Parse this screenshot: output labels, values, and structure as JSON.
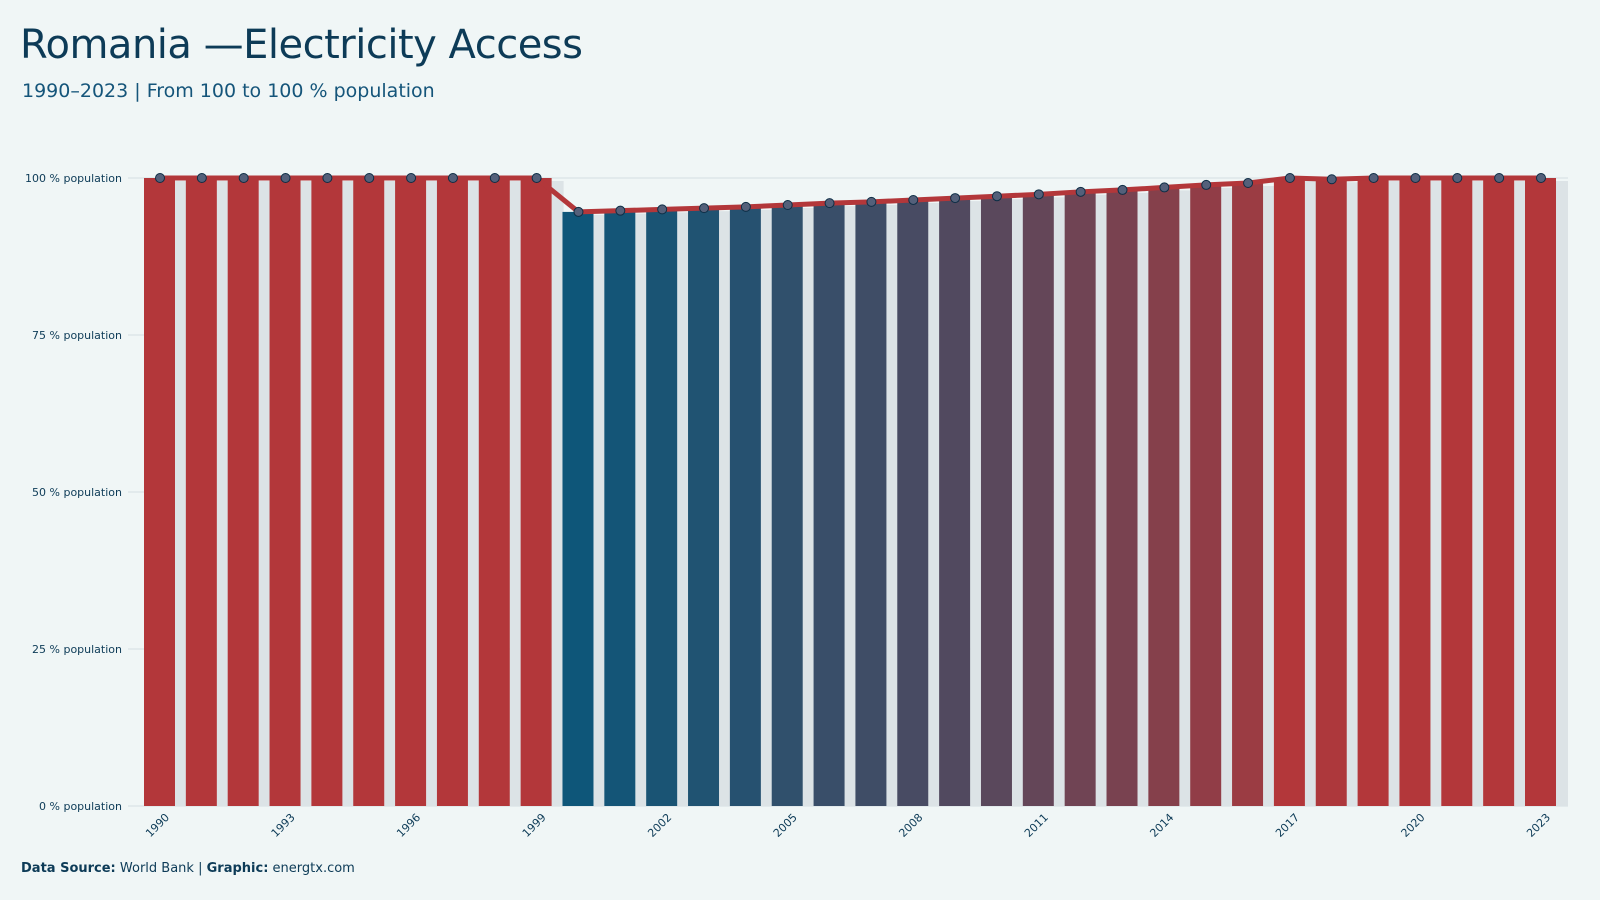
{
  "header": {
    "title": "Romania —Electricity Access",
    "subtitle": "1990–2023 | From 100 to 100 % population"
  },
  "footer": {
    "source_label": "Data Source:",
    "source_value": "World Bank",
    "separator": "|",
    "graphic_label": "Graphic:",
    "graphic_value": "energtx.com"
  },
  "colors": {
    "high": "#b3373a",
    "low": "#0e5679",
    "line": "#b3373a",
    "shadow_bar": "#dce3e6",
    "grid": "#d5dfe1",
    "marker_fill": "#54607a",
    "marker_stroke": "#0d2d45"
  },
  "chart_data": {
    "type": "bar",
    "title": "Romania —Electricity Access",
    "subtitle": "1990–2023 | From 100 to 100 % population",
    "ylim": [
      0,
      100
    ],
    "yticks": [
      0,
      25,
      50,
      75,
      100
    ],
    "y_tick_labels": [
      "0 % population",
      "25 % population",
      "50 % population",
      "75 % population",
      "100 % population"
    ],
    "x_tick_labels": [
      "1990",
      "1993",
      "1996",
      "1999",
      "2002",
      "2005",
      "2008",
      "2011",
      "2014",
      "2017",
      "2020",
      "2023"
    ],
    "grid": true,
    "categories": [
      "1990",
      "1991",
      "1992",
      "1993",
      "1994",
      "1995",
      "1996",
      "1997",
      "1998",
      "1999",
      "2000",
      "2001",
      "2002",
      "2003",
      "2004",
      "2005",
      "2006",
      "2007",
      "2008",
      "2009",
      "2010",
      "2011",
      "2012",
      "2013",
      "2014",
      "2015",
      "2016",
      "2017",
      "2018",
      "2019",
      "2020",
      "2021",
      "2022",
      "2023"
    ],
    "values": [
      100,
      100,
      100,
      100,
      100,
      100,
      100,
      100,
      100,
      100,
      94.6,
      94.8,
      95.0,
      95.2,
      95.4,
      95.7,
      96.0,
      96.2,
      96.5,
      96.8,
      97.1,
      97.4,
      97.8,
      98.1,
      98.5,
      98.9,
      99.2,
      100,
      99.8,
      100,
      100,
      100,
      100,
      100
    ]
  }
}
